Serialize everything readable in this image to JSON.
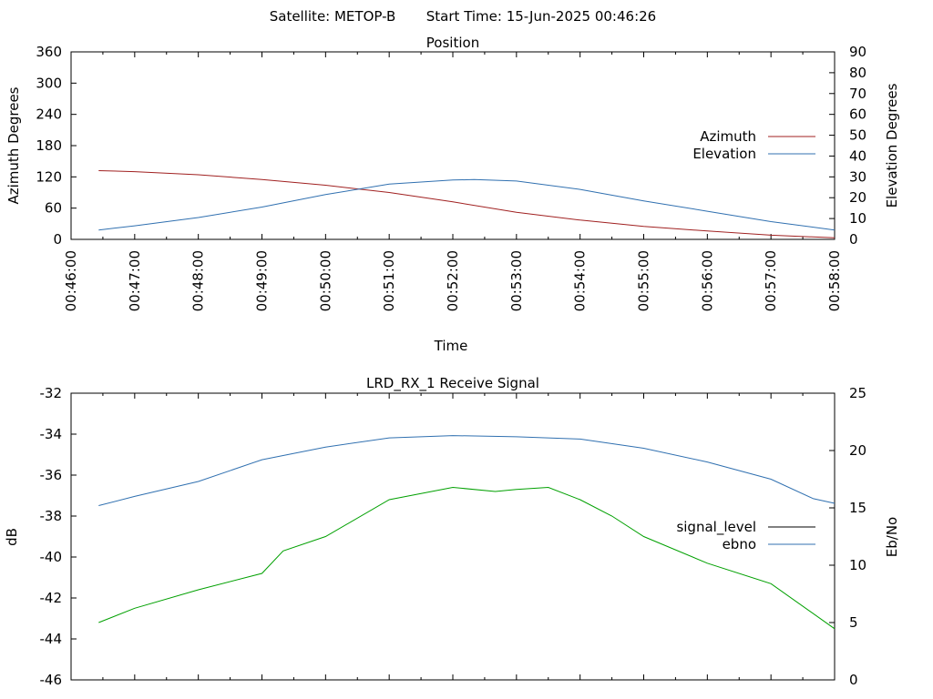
{
  "header": {
    "satellite_text": "Satellite: METOP-B",
    "start_time_text": "Start Time: 15-Jun-2025 00:46:26"
  },
  "chart_data": [
    {
      "type": "line",
      "title": "Position",
      "xlabel": "Time",
      "ylabel": "Azimuth Degrees",
      "y2label": "Elevation Degrees",
      "xlim": [
        "00:46:00",
        "00:58:00"
      ],
      "xticks": [
        "00:46:00",
        "00:47:00",
        "00:48:00",
        "00:49:00",
        "00:50:00",
        "00:51:00",
        "00:52:00",
        "00:53:00",
        "00:54:00",
        "00:55:00",
        "00:56:00",
        "00:57:00",
        "00:58:00"
      ],
      "ylim": [
        0,
        360
      ],
      "yticks": [
        0,
        60,
        120,
        180,
        240,
        300,
        360
      ],
      "y2lim": [
        0,
        90
      ],
      "y2ticks": [
        0,
        10,
        20,
        30,
        40,
        50,
        60,
        70,
        80,
        90
      ],
      "legend": "right",
      "series": [
        {
          "name": "Azimuth",
          "axis": "y",
          "color": "#a02020",
          "x": [
            "00:46:26",
            "00:47:00",
            "00:48:00",
            "00:49:00",
            "00:50:00",
            "00:51:00",
            "00:52:00",
            "00:53:00",
            "00:54:00",
            "00:55:00",
            "00:56:00",
            "00:57:00",
            "00:58:00"
          ],
          "values": [
            132,
            130,
            124,
            115,
            104,
            90,
            72,
            52,
            37,
            25,
            16,
            8,
            3
          ]
        },
        {
          "name": "Elevation",
          "axis": "y2",
          "color": "#3070b0",
          "x": [
            "00:46:26",
            "00:47:00",
            "00:48:00",
            "00:49:00",
            "00:50:00",
            "00:51:00",
            "00:52:00",
            "00:52:20",
            "00:53:00",
            "00:54:00",
            "00:55:00",
            "00:56:00",
            "00:57:00",
            "00:58:00"
          ],
          "values": [
            4.5,
            6.5,
            10.5,
            15.5,
            21.5,
            26.5,
            28.5,
            28.7,
            28,
            24,
            18.5,
            13.5,
            8.5,
            4.5
          ]
        }
      ]
    },
    {
      "type": "line",
      "title": "LRD_RX_1 Receive Signal",
      "ylabel": "dB",
      "y2label": "Eb/No",
      "xlim": [
        "00:46:00",
        "00:58:00"
      ],
      "ylim": [
        -46,
        -32
      ],
      "yticks": [
        -46,
        -44,
        -42,
        -40,
        -38,
        -36,
        -34,
        -32
      ],
      "y2lim": [
        0,
        25
      ],
      "y2ticks": [
        0,
        5,
        10,
        15,
        20,
        25
      ],
      "legend": "right",
      "series": [
        {
          "name": "signal_level",
          "axis": "y",
          "color": "#00a000",
          "legend_color": "#000000",
          "x": [
            "00:46:26",
            "00:47:00",
            "00:48:00",
            "00:49:00",
            "00:49:20",
            "00:50:00",
            "00:51:00",
            "00:52:00",
            "00:52:40",
            "00:53:00",
            "00:53:30",
            "00:54:00",
            "00:54:30",
            "00:55:00",
            "00:56:00",
            "00:57:00",
            "00:58:00"
          ],
          "values": [
            -43.2,
            -42.5,
            -41.6,
            -40.8,
            -39.7,
            -39.0,
            -37.2,
            -36.6,
            -36.8,
            -36.7,
            -36.6,
            -37.2,
            -38.0,
            -39.0,
            -40.3,
            -41.3,
            -43.5
          ]
        },
        {
          "name": "ebno",
          "axis": "y2",
          "color": "#3070b0",
          "x": [
            "00:46:26",
            "00:47:00",
            "00:48:00",
            "00:49:00",
            "00:50:00",
            "00:51:00",
            "00:52:00",
            "00:53:00",
            "00:54:00",
            "00:55:00",
            "00:56:00",
            "00:57:00",
            "00:57:40",
            "00:58:00"
          ],
          "values": [
            15.2,
            16.0,
            17.3,
            19.2,
            20.3,
            21.1,
            21.3,
            21.2,
            21.0,
            20.2,
            19.0,
            17.5,
            15.8,
            15.4
          ]
        }
      ]
    }
  ]
}
